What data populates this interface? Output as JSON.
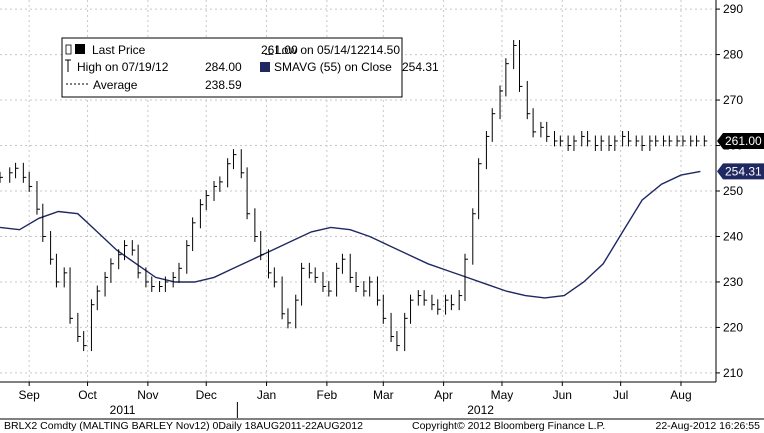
{
  "chart_data": {
    "type": "line",
    "ylim": [
      208,
      292
    ],
    "ytick_step": 10,
    "grid": true,
    "legend_position": "top-left",
    "y_ticks": [
      "210",
      "220",
      "230",
      "240",
      "250",
      "260",
      "270",
      "280",
      "290"
    ],
    "x_ticks": [
      {
        "label": "Sep",
        "day": 15
      },
      {
        "label": "Oct",
        "day": 45
      },
      {
        "label": "Nov",
        "day": 76
      },
      {
        "label": "Dec",
        "day": 106
      },
      {
        "label": "Jan",
        "day": 137
      },
      {
        "label": "Feb",
        "day": 168
      },
      {
        "label": "Mar",
        "day": 197
      },
      {
        "label": "Apr",
        "day": 228
      },
      {
        "label": "May",
        "day": 258
      },
      {
        "label": "Jun",
        "day": 289
      },
      {
        "label": "Jul",
        "day": 319
      },
      {
        "label": "Aug",
        "day": 350
      }
    ],
    "x_range": [
      0,
      368
    ],
    "year_labels": [
      {
        "label": "2011",
        "day": 63
      },
      {
        "label": "2012",
        "day": 247
      }
    ],
    "year_divider_day": 122,
    "legend": {
      "last_price_label": "Last Price",
      "last_price_value": "261.00",
      "high_label": "High on 07/19/12",
      "high_value": "284.00",
      "average_label": "Average",
      "average_value": "238.59",
      "low_label": "Low on 05/14/12",
      "low_value": "214.50",
      "sma_label": "SMAVG (55) on Close",
      "sma_value": "254.31"
    },
    "tags": [
      {
        "text": "261.00",
        "value": 261.0,
        "color": "#000000"
      },
      {
        "text": "254.31",
        "value": 254.31,
        "color": "#1f2860"
      }
    ],
    "series": [
      {
        "name": "Last Price",
        "style": "ohlc",
        "color": "#000000",
        "days": [
          0,
          5,
          8,
          12,
          15,
          19,
          22,
          26,
          29,
          33,
          36,
          40,
          43,
          47,
          50,
          54,
          57,
          61,
          64,
          68,
          71,
          75,
          78,
          82,
          85,
          89,
          92,
          96,
          99,
          103,
          106,
          110,
          113,
          117,
          120,
          124,
          127,
          131,
          134,
          138,
          141,
          145,
          148,
          152,
          155,
          159,
          162,
          166,
          169,
          173,
          176,
          180,
          183,
          187,
          190,
          194,
          197,
          201,
          204,
          208,
          211,
          215,
          218,
          222,
          225,
          229,
          232,
          236,
          239,
          243,
          246,
          250,
          253,
          257,
          260,
          264,
          267,
          271,
          274,
          278,
          281,
          285,
          288,
          292,
          295,
          299,
          302,
          306,
          309,
          313,
          316,
          320,
          323,
          327,
          330,
          334,
          337,
          341,
          344,
          348,
          351,
          355,
          358,
          362
        ],
        "values": [
          253,
          254,
          255,
          253,
          251,
          246,
          240,
          235,
          230,
          232,
          222,
          218,
          216,
          225,
          228,
          231,
          234,
          236,
          238,
          237,
          232,
          230,
          229,
          229,
          230,
          231,
          233,
          238,
          243,
          247,
          249,
          251,
          252,
          256,
          258,
          254,
          245,
          240,
          236,
          232,
          230,
          223,
          221,
          226,
          233,
          232,
          231,
          229,
          228,
          233,
          235,
          231,
          229,
          228,
          230,
          226,
          222,
          218,
          216,
          222,
          226,
          227,
          226,
          225,
          224,
          226,
          225,
          227,
          235,
          245,
          256,
          262,
          267,
          272,
          278,
          282,
          273,
          267,
          263,
          264,
          262,
          261,
          261,
          260,
          261,
          262,
          261,
          260,
          261,
          260,
          261,
          262,
          261,
          261,
          260,
          261,
          261,
          261,
          261,
          261,
          261,
          261,
          261,
          261
        ]
      },
      {
        "name": "SMAVG (55) on Close",
        "style": "line",
        "color": "#1f2860",
        "days": [
          0,
          10,
          20,
          30,
          40,
          50,
          60,
          70,
          80,
          90,
          100,
          110,
          120,
          130,
          140,
          150,
          160,
          170,
          180,
          190,
          200,
          210,
          220,
          230,
          240,
          250,
          260,
          270,
          280,
          290,
          300,
          310,
          320,
          330,
          340,
          350,
          360
        ],
        "values": [
          242,
          241.5,
          244,
          245.5,
          245,
          241,
          237,
          234,
          231,
          230,
          230,
          231,
          233,
          235,
          237,
          239,
          241,
          242,
          241.5,
          240,
          238,
          236,
          234,
          232.5,
          231,
          229.5,
          228,
          227,
          226.5,
          227,
          230,
          234,
          241,
          248,
          251.5,
          253.5,
          254.3
        ]
      }
    ]
  },
  "footer": {
    "left": "BRLX2 Comdty (MALTING BARLEY     Nov12) 0Daily 18AUG2011-22AUG2012",
    "middle": "Copyright© 2012 Bloomberg Finance L.P.",
    "right": "22-Aug-2012 16:26:55"
  }
}
